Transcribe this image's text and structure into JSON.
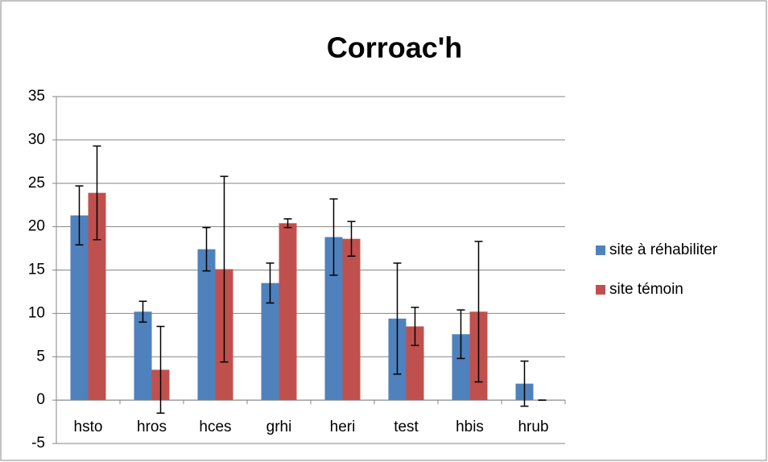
{
  "chart_data": {
    "type": "bar",
    "title": "Corroac'h",
    "categories": [
      "hsto",
      "hros",
      "hces",
      "grhi",
      "heri",
      "test",
      "hbis",
      "hrub"
    ],
    "series": [
      {
        "name": "site à réhabiliter",
        "color": "#4f81bd",
        "values": [
          21.3,
          10.2,
          17.4,
          13.5,
          18.8,
          9.4,
          7.6,
          1.9
        ],
        "errors": [
          3.4,
          1.2,
          2.5,
          2.3,
          4.4,
          6.4,
          2.8,
          2.6
        ]
      },
      {
        "name": "site témoin",
        "color": "#c0504d",
        "values": [
          23.9,
          3.5,
          15.1,
          20.4,
          18.6,
          8.5,
          10.2,
          0
        ],
        "errors": [
          5.4,
          5,
          10.7,
          0.5,
          2,
          2.2,
          8.1,
          0
        ]
      }
    ],
    "ylim": [
      -5,
      35
    ],
    "yticks": [
      -5,
      0,
      5,
      10,
      15,
      20,
      25,
      30,
      35
    ],
    "grid": true,
    "legend": "right"
  }
}
